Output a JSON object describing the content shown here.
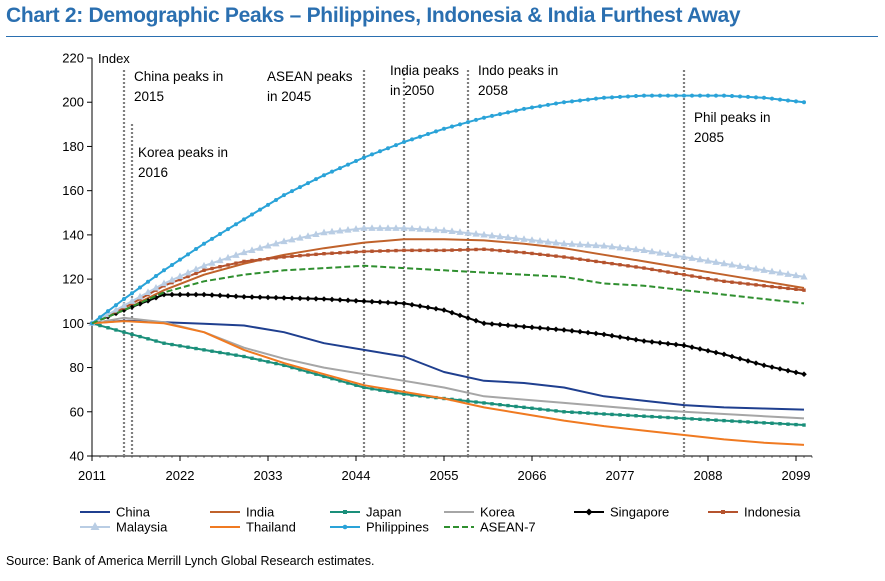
{
  "title": "Chart 2: Demographic Peaks – Philippines, Indonesia & India Furthest Away",
  "source": "Source: Bank of America Merrill Lynch Global Research estimates.",
  "chart_data": {
    "type": "line",
    "ylabel": "Index",
    "ylim": [
      40,
      220
    ],
    "yticks": [
      40,
      60,
      80,
      100,
      120,
      140,
      160,
      180,
      200,
      220
    ],
    "xlim": [
      2011,
      2101
    ],
    "xticks": [
      2011,
      2022,
      2033,
      2044,
      2055,
      2066,
      2077,
      2088,
      2099
    ],
    "grid": false,
    "legend_position": "bottom",
    "annotations": [
      {
        "x": 2015,
        "lines": [
          "China peaks in",
          "2015"
        ]
      },
      {
        "x": 2016,
        "lines": [
          "Korea peaks in",
          "2016"
        ]
      },
      {
        "x": 2045,
        "lines": [
          "ASEAN peaks",
          "in 2045"
        ]
      },
      {
        "x": 2050,
        "lines": [
          "India peaks",
          "in 2050"
        ]
      },
      {
        "x": 2058,
        "lines": [
          "Indo peaks in",
          "2058"
        ]
      },
      {
        "x": 2085,
        "lines": [
          "Phil peaks in",
          "2085"
        ]
      }
    ],
    "x": [
      2011,
      2015,
      2020,
      2025,
      2030,
      2035,
      2040,
      2045,
      2050,
      2055,
      2060,
      2065,
      2070,
      2075,
      2080,
      2085,
      2090,
      2095,
      2100
    ],
    "series": [
      {
        "name": "China",
        "color": "#1f3f8f",
        "style": "solid",
        "values": [
          100,
          101.2,
          100.5,
          99.8,
          99,
          96,
          91,
          88,
          85,
          78,
          74,
          73,
          71,
          67,
          65,
          63,
          62,
          61.5,
          61
        ]
      },
      {
        "name": "India",
        "color": "#c0622b",
        "style": "solid",
        "values": [
          100,
          106,
          115,
          122,
          127,
          131,
          134,
          136.5,
          138,
          138,
          137.5,
          136,
          134,
          131,
          128,
          125,
          122,
          119,
          116
        ]
      },
      {
        "name": "Japan",
        "color": "#1a8f7a",
        "style": "square",
        "values": [
          100,
          96,
          91,
          88,
          85,
          81,
          76,
          71,
          68,
          66,
          64,
          62,
          60,
          59,
          58,
          57,
          56,
          55,
          54
        ]
      },
      {
        "name": "Korea",
        "color": "#a6a6a6",
        "style": "solid",
        "values": [
          100,
          102.5,
          100.5,
          96,
          89,
          84,
          80,
          77,
          74,
          71,
          67,
          65.5,
          64,
          62.5,
          61,
          60,
          59,
          58,
          57
        ]
      },
      {
        "name": "Singapore",
        "color": "#000000",
        "style": "diamond",
        "values": [
          100,
          106,
          113,
          113,
          112,
          111.5,
          111,
          110,
          109,
          106,
          100,
          98.5,
          97,
          95,
          92,
          90,
          86,
          81,
          77
        ]
      },
      {
        "name": "Indonesia",
        "color": "#b5532e",
        "style": "square",
        "values": [
          100,
          107,
          117,
          124,
          128,
          130,
          131.5,
          132.5,
          133,
          133,
          133.5,
          132,
          130,
          127.5,
          125,
          122,
          119,
          117,
          115
        ]
      },
      {
        "name": "Malaysia",
        "color": "#b9cde4",
        "style": "triangle",
        "values": [
          100,
          108,
          118,
          126,
          132,
          137,
          141,
          143,
          143,
          142,
          140,
          138,
          136,
          135,
          133,
          130,
          127,
          124,
          121
        ]
      },
      {
        "name": "Thailand",
        "color": "#f07a21",
        "style": "solid",
        "values": [
          100,
          101,
          100,
          96,
          88,
          82,
          77,
          72,
          69,
          66,
          62,
          59,
          56,
          53.5,
          51.5,
          49.5,
          47.5,
          46,
          45
        ]
      },
      {
        "name": "Philippines",
        "color": "#2aa3d8",
        "style": "dot",
        "values": [
          100,
          111,
          124,
          136,
          147,
          158,
          167,
          175,
          182,
          188,
          193,
          197,
          200,
          202,
          203,
          203,
          203,
          202,
          200
        ]
      },
      {
        "name": "ASEAN-7",
        "color": "#2f8f2f",
        "style": "dash",
        "values": [
          100,
          106,
          114,
          119,
          122,
          124,
          125,
          126,
          125,
          124,
          123,
          122,
          121,
          118,
          117,
          115,
          113,
          111,
          109
        ]
      }
    ],
    "legend_rows": [
      [
        "China",
        "India",
        "Japan",
        "Korea",
        "Singapore",
        "Indonesia"
      ],
      [
        "Malaysia",
        "Thailand",
        "Philippines",
        "ASEAN-7"
      ]
    ]
  }
}
